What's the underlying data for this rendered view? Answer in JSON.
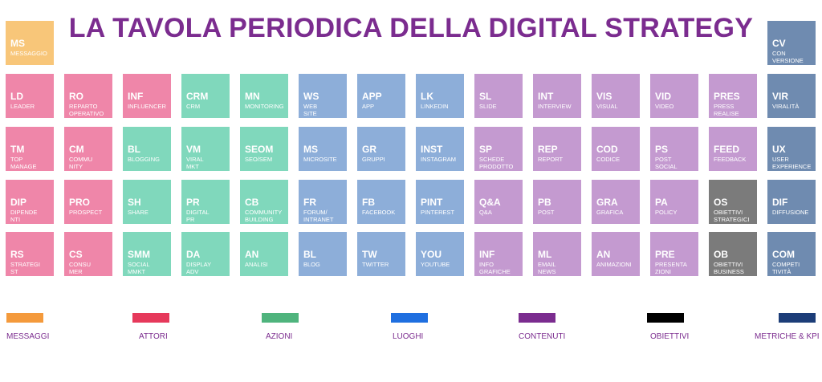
{
  "title": "LA TAVOLA PERIODICA DELLA DIGITAL STRATEGY",
  "colors": {
    "orange": "#f8c679",
    "pink": "#ef86a9",
    "green": "#80d8bc",
    "blue": "#8daed9",
    "purple": "#c49ad0",
    "grey": "#7b7b7b",
    "steel": "#6f8bb0"
  },
  "corner_tiles": [
    {
      "symbol": "MS",
      "name": "MESSAGGIO",
      "color": "orange"
    },
    {
      "symbol": "CV",
      "name": "CON\nVERSIONE",
      "color": "steel"
    }
  ],
  "grid": [
    [
      {
        "symbol": "LD",
        "name": "LEADER",
        "color": "pink"
      },
      {
        "symbol": "RO",
        "name": "REPARTO\nOPERATIVO",
        "color": "pink"
      },
      {
        "symbol": "INF",
        "name": "INFLUENCER",
        "color": "pink"
      },
      {
        "symbol": "CRM",
        "name": "CRM",
        "color": "green"
      },
      {
        "symbol": "MN",
        "name": "MONITORING",
        "color": "green"
      },
      {
        "symbol": "WS",
        "name": "WEB\nSITE",
        "color": "blue"
      },
      {
        "symbol": "APP",
        "name": "APP",
        "color": "blue"
      },
      {
        "symbol": "LK",
        "name": "LINKEDIN",
        "color": "blue"
      },
      {
        "symbol": "SL",
        "name": "SLIDE",
        "color": "purple"
      },
      {
        "symbol": "INT",
        "name": "INTERVIEW",
        "color": "purple"
      },
      {
        "symbol": "VIS",
        "name": "VISUAL",
        "color": "purple"
      },
      {
        "symbol": "VID",
        "name": "VIDEO",
        "color": "purple"
      },
      {
        "symbol": "PRES",
        "name": "PRESS\nREALISE",
        "color": "purple"
      },
      {
        "symbol": "VIR",
        "name": "VIRALITÀ",
        "color": "steel"
      }
    ],
    [
      {
        "symbol": "TM",
        "name": "TOP\nMANAGE\nMENT",
        "color": "pink"
      },
      {
        "symbol": "CM",
        "name": "COMMU\nNITY",
        "color": "pink"
      },
      {
        "symbol": "BL",
        "name": "BLOGGING",
        "color": "green"
      },
      {
        "symbol": "VM",
        "name": "VIRAL\nMKT",
        "color": "green"
      },
      {
        "symbol": "SEOM",
        "name": "SEO/SEM",
        "color": "green"
      },
      {
        "symbol": "MS",
        "name": "MICROSITE",
        "color": "blue"
      },
      {
        "symbol": "GR",
        "name": "GRUPPI",
        "color": "blue"
      },
      {
        "symbol": "INST",
        "name": "INSTAGRAM",
        "color": "blue"
      },
      {
        "symbol": "SP",
        "name": "SCHEDE\nPRODOTTO",
        "color": "purple"
      },
      {
        "symbol": "REP",
        "name": "REPORT",
        "color": "purple"
      },
      {
        "symbol": "COD",
        "name": "CODICE",
        "color": "purple"
      },
      {
        "symbol": "PS",
        "name": "POST\nSOCIAL",
        "color": "purple"
      },
      {
        "symbol": "FEED",
        "name": "FEEDBACK",
        "color": "purple"
      },
      {
        "symbol": "UX",
        "name": "USER\nEXPERIENCE",
        "color": "steel"
      }
    ],
    [
      {
        "symbol": "DIP",
        "name": "DIPENDE\nNTI",
        "color": "pink"
      },
      {
        "symbol": "PRO",
        "name": "PROSPECT",
        "color": "pink"
      },
      {
        "symbol": "SH",
        "name": "SHARE",
        "color": "green"
      },
      {
        "symbol": "PR",
        "name": "DIGITAL\nPR",
        "color": "green"
      },
      {
        "symbol": "CB",
        "name": "COMMUNITY\nBUILDING",
        "color": "green"
      },
      {
        "symbol": "FR",
        "name": "FORUM/\nINTRANET",
        "color": "blue"
      },
      {
        "symbol": "FB",
        "name": "FACEBOOK",
        "color": "blue"
      },
      {
        "symbol": "PINT",
        "name": "PINTEREST",
        "color": "blue"
      },
      {
        "symbol": "Q&A",
        "name": "Q&A",
        "color": "purple"
      },
      {
        "symbol": "PB",
        "name": "POST",
        "color": "purple"
      },
      {
        "symbol": "GRA",
        "name": "GRAFICA",
        "color": "purple"
      },
      {
        "symbol": "PA",
        "name": "POLICY",
        "color": "purple"
      },
      {
        "symbol": "OS",
        "name": "OBIETTIVI\nSTRATEGICI",
        "color": "grey"
      },
      {
        "symbol": "DIF",
        "name": "DIFFUSIONE",
        "color": "steel"
      }
    ],
    [
      {
        "symbol": "RS",
        "name": "STRATEGI\nST",
        "color": "pink"
      },
      {
        "symbol": "CS",
        "name": "CONSU\nMER",
        "color": "pink"
      },
      {
        "symbol": "SMM",
        "name": "SOCIAL\nMMKT",
        "color": "green"
      },
      {
        "symbol": "DA",
        "name": "DISPLAY\nADV",
        "color": "green"
      },
      {
        "symbol": "AN",
        "name": "ANALISI",
        "color": "green"
      },
      {
        "symbol": "BL",
        "name": "BLOG",
        "color": "blue"
      },
      {
        "symbol": "TW",
        "name": "TWITTER",
        "color": "blue"
      },
      {
        "symbol": "YOU",
        "name": "YOUTUBE",
        "color": "blue"
      },
      {
        "symbol": "INF",
        "name": "INFO\nGRAFICHE",
        "color": "purple"
      },
      {
        "symbol": "ML",
        "name": "EMAIL\nNEWS",
        "color": "purple"
      },
      {
        "symbol": "AN",
        "name": "ANIMAZIONI",
        "color": "purple"
      },
      {
        "symbol": "PRE",
        "name": "PRESENTA\nZIONI",
        "color": "purple"
      },
      {
        "symbol": "OB",
        "name": "OBIETTIVI\nBUSINESS",
        "color": "grey"
      },
      {
        "symbol": "COM",
        "name": "COMPETI\nTIVITÀ",
        "color": "steel"
      }
    ]
  ],
  "legend": [
    {
      "label": "MESSAGGI",
      "color": "#f49a3c"
    },
    {
      "label": "ATTORI",
      "color": "#e6395b"
    },
    {
      "label": "AZIONI",
      "color": "#4fb47d"
    },
    {
      "label": "LUOGHI",
      "color": "#1f6fe0"
    },
    {
      "label": "CONTENUTI",
      "color": "#7b2c8f"
    },
    {
      "label": "OBIETTIVI",
      "color": "#000000"
    },
    {
      "label": "METRICHE & KPI",
      "color": "#1c3d78"
    }
  ]
}
